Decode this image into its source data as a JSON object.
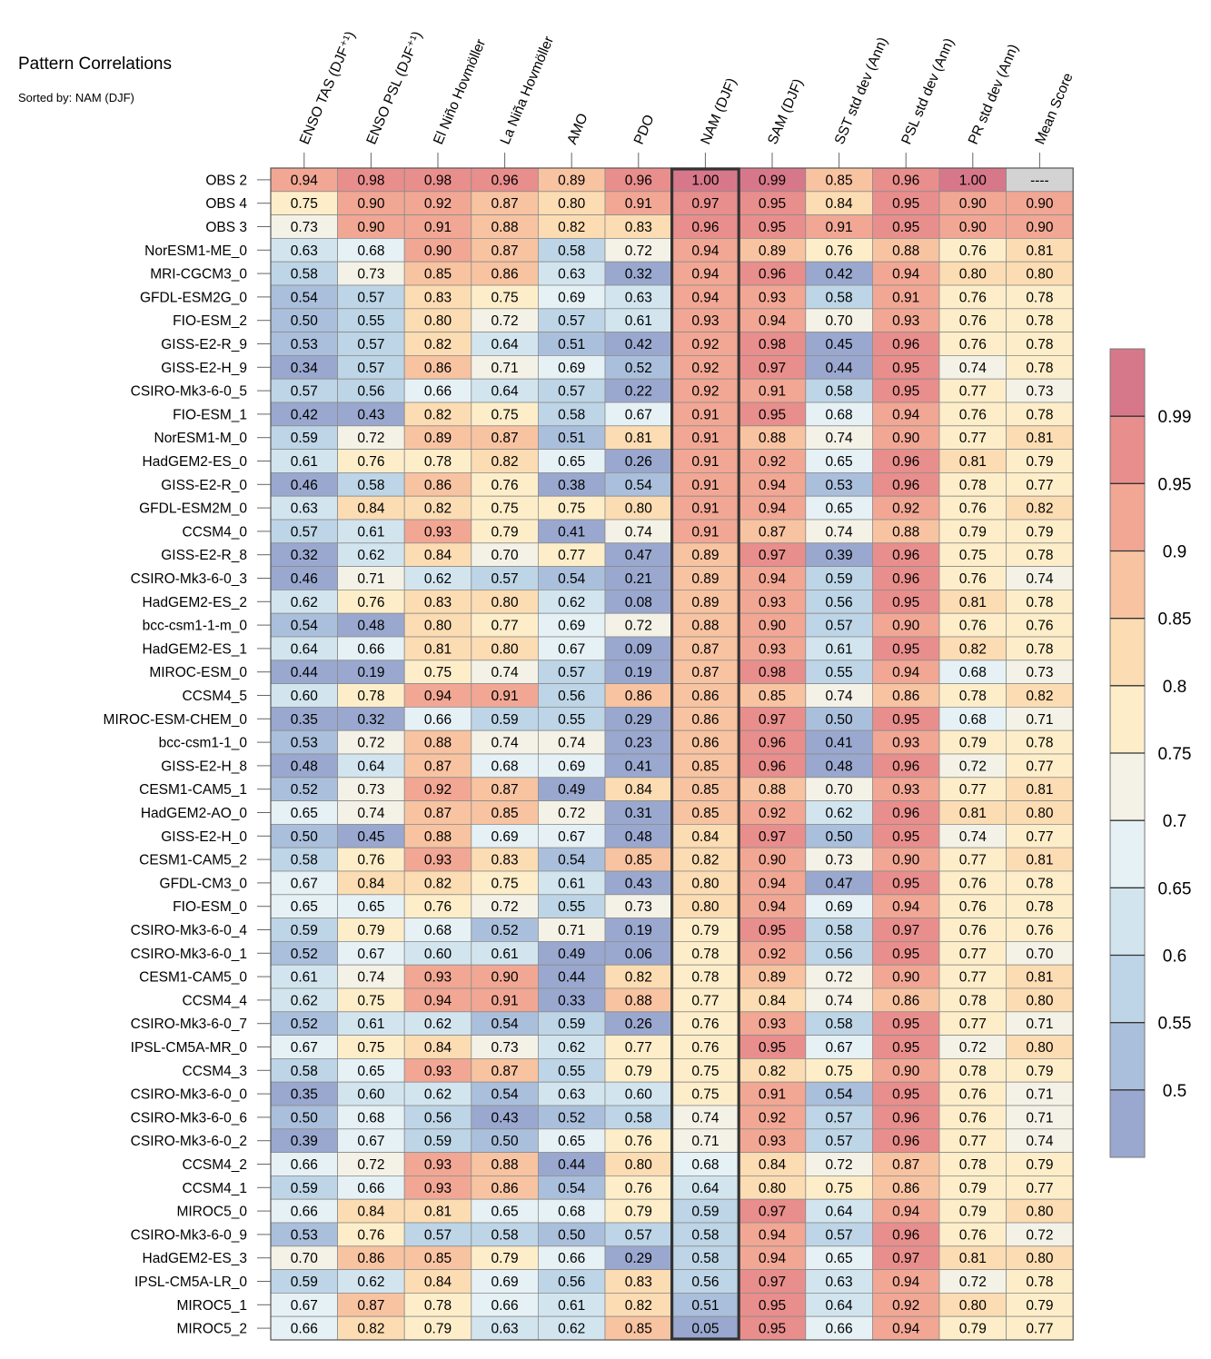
{
  "title": "Pattern Correlations",
  "subtitle": "Sorted by: NAM (DJF)",
  "chart_data": {
    "type": "heatmap",
    "title": "Pattern Correlations",
    "subtitle": "Sorted by: NAM (DJF)",
    "columns": [
      "ENSO TAS (DJF⁺¹)",
      "ENSO PSL (DJF⁺¹)",
      "El Niño Hovmöller",
      "La Niña Hovmöller",
      "AMO",
      "PDO",
      "NAM (DJF)",
      "SAM (DJF)",
      "SST std dev (Ann)",
      "PSL std dev (Ann)",
      "PR std dev (Ann)",
      "Mean Score"
    ],
    "highlight_column": "NAM (DJF)",
    "rows": [
      "OBS 2",
      "OBS 4",
      "OBS 3",
      "NorESM1-ME_0",
      "MRI-CGCM3_0",
      "GFDL-ESM2G_0",
      "FIO-ESM_2",
      "GISS-E2-R_9",
      "GISS-E2-H_9",
      "CSIRO-Mk3-6-0_5",
      "FIO-ESM_1",
      "NorESM1-M_0",
      "HadGEM2-ES_0",
      "GISS-E2-R_0",
      "GFDL-ESM2M_0",
      "CCSM4_0",
      "GISS-E2-R_8",
      "CSIRO-Mk3-6-0_3",
      "HadGEM2-ES_2",
      "bcc-csm1-1-m_0",
      "HadGEM2-ES_1",
      "MIROC-ESM_0",
      "CCSM4_5",
      "MIROC-ESM-CHEM_0",
      "bcc-csm1-1_0",
      "GISS-E2-H_8",
      "CESM1-CAM5_1",
      "HadGEM2-AO_0",
      "GISS-E2-H_0",
      "CESM1-CAM5_2",
      "GFDL-CM3_0",
      "FIO-ESM_0",
      "CSIRO-Mk3-6-0_4",
      "CSIRO-Mk3-6-0_1",
      "CESM1-CAM5_0",
      "CCSM4_4",
      "CSIRO-Mk3-6-0_7",
      "IPSL-CM5A-MR_0",
      "CCSM4_3",
      "CSIRO-Mk3-6-0_0",
      "CSIRO-Mk3-6-0_6",
      "CSIRO-Mk3-6-0_2",
      "CCSM4_2",
      "CCSM4_1",
      "MIROC5_0",
      "CSIRO-Mk3-6-0_9",
      "HadGEM2-ES_3",
      "IPSL-CM5A-LR_0",
      "MIROC5_1",
      "MIROC5_2"
    ],
    "values": [
      [
        "0.94",
        "0.98",
        "0.98",
        "0.96",
        "0.89",
        "0.96",
        "1.00",
        "0.99",
        "0.85",
        "0.96",
        "1.00",
        "----"
      ],
      [
        "0.75",
        "0.90",
        "0.92",
        "0.87",
        "0.80",
        "0.91",
        "0.97",
        "0.95",
        "0.84",
        "0.95",
        "0.90",
        "0.90"
      ],
      [
        "0.73",
        "0.90",
        "0.91",
        "0.88",
        "0.82",
        "0.83",
        "0.96",
        "0.95",
        "0.91",
        "0.95",
        "0.90",
        "0.90"
      ],
      [
        "0.63",
        "0.68",
        "0.90",
        "0.87",
        "0.58",
        "0.72",
        "0.94",
        "0.89",
        "0.76",
        "0.88",
        "0.76",
        "0.81"
      ],
      [
        "0.58",
        "0.73",
        "0.85",
        "0.86",
        "0.63",
        "0.32",
        "0.94",
        "0.96",
        "0.42",
        "0.94",
        "0.80",
        "0.80"
      ],
      [
        "0.54",
        "0.57",
        "0.83",
        "0.75",
        "0.69",
        "0.63",
        "0.94",
        "0.93",
        "0.58",
        "0.91",
        "0.76",
        "0.78"
      ],
      [
        "0.50",
        "0.55",
        "0.80",
        "0.72",
        "0.57",
        "0.61",
        "0.93",
        "0.94",
        "0.70",
        "0.93",
        "0.76",
        "0.78"
      ],
      [
        "0.53",
        "0.57",
        "0.82",
        "0.64",
        "0.51",
        "0.42",
        "0.92",
        "0.98",
        "0.45",
        "0.96",
        "0.76",
        "0.78"
      ],
      [
        "0.34",
        "0.57",
        "0.86",
        "0.71",
        "0.69",
        "0.52",
        "0.92",
        "0.97",
        "0.44",
        "0.95",
        "0.74",
        "0.78"
      ],
      [
        "0.57",
        "0.56",
        "0.66",
        "0.64",
        "0.57",
        "0.22",
        "0.92",
        "0.91",
        "0.58",
        "0.95",
        "0.77",
        "0.73"
      ],
      [
        "0.42",
        "0.43",
        "0.82",
        "0.75",
        "0.58",
        "0.67",
        "0.91",
        "0.95",
        "0.68",
        "0.94",
        "0.76",
        "0.78"
      ],
      [
        "0.59",
        "0.72",
        "0.89",
        "0.87",
        "0.51",
        "0.81",
        "0.91",
        "0.88",
        "0.74",
        "0.90",
        "0.77",
        "0.81"
      ],
      [
        "0.61",
        "0.76",
        "0.78",
        "0.82",
        "0.65",
        "0.26",
        "0.91",
        "0.92",
        "0.65",
        "0.96",
        "0.81",
        "0.79"
      ],
      [
        "0.46",
        "0.58",
        "0.86",
        "0.76",
        "0.38",
        "0.54",
        "0.91",
        "0.94",
        "0.53",
        "0.96",
        "0.78",
        "0.77"
      ],
      [
        "0.63",
        "0.84",
        "0.82",
        "0.75",
        "0.75",
        "0.80",
        "0.91",
        "0.94",
        "0.65",
        "0.92",
        "0.76",
        "0.82"
      ],
      [
        "0.57",
        "0.61",
        "0.93",
        "0.79",
        "0.41",
        "0.74",
        "0.91",
        "0.87",
        "0.74",
        "0.88",
        "0.79",
        "0.79"
      ],
      [
        "0.32",
        "0.62",
        "0.84",
        "0.70",
        "0.77",
        "0.47",
        "0.89",
        "0.97",
        "0.39",
        "0.96",
        "0.75",
        "0.78"
      ],
      [
        "0.46",
        "0.71",
        "0.62",
        "0.57",
        "0.54",
        "0.21",
        "0.89",
        "0.94",
        "0.59",
        "0.96",
        "0.76",
        "0.74"
      ],
      [
        "0.62",
        "0.76",
        "0.83",
        "0.80",
        "0.62",
        "0.08",
        "0.89",
        "0.93",
        "0.56",
        "0.95",
        "0.81",
        "0.78"
      ],
      [
        "0.54",
        "0.48",
        "0.80",
        "0.77",
        "0.69",
        "0.72",
        "0.88",
        "0.90",
        "0.57",
        "0.90",
        "0.76",
        "0.76"
      ],
      [
        "0.64",
        "0.66",
        "0.81",
        "0.80",
        "0.67",
        "0.09",
        "0.87",
        "0.93",
        "0.61",
        "0.95",
        "0.82",
        "0.78"
      ],
      [
        "0.44",
        "0.19",
        "0.75",
        "0.74",
        "0.57",
        "0.19",
        "0.87",
        "0.98",
        "0.55",
        "0.94",
        "0.68",
        "0.73"
      ],
      [
        "0.60",
        "0.78",
        "0.94",
        "0.91",
        "0.56",
        "0.86",
        "0.86",
        "0.85",
        "0.74",
        "0.86",
        "0.78",
        "0.82"
      ],
      [
        "0.35",
        "0.32",
        "0.66",
        "0.59",
        "0.55",
        "0.29",
        "0.86",
        "0.97",
        "0.50",
        "0.95",
        "0.68",
        "0.71"
      ],
      [
        "0.53",
        "0.72",
        "0.88",
        "0.74",
        "0.74",
        "0.23",
        "0.86",
        "0.96",
        "0.41",
        "0.93",
        "0.79",
        "0.78"
      ],
      [
        "0.48",
        "0.64",
        "0.87",
        "0.68",
        "0.69",
        "0.41",
        "0.85",
        "0.96",
        "0.48",
        "0.96",
        "0.72",
        "0.77"
      ],
      [
        "0.52",
        "0.73",
        "0.92",
        "0.87",
        "0.49",
        "0.84",
        "0.85",
        "0.88",
        "0.70",
        "0.93",
        "0.77",
        "0.81"
      ],
      [
        "0.65",
        "0.74",
        "0.87",
        "0.85",
        "0.72",
        "0.31",
        "0.85",
        "0.92",
        "0.62",
        "0.96",
        "0.81",
        "0.80"
      ],
      [
        "0.50",
        "0.45",
        "0.88",
        "0.69",
        "0.67",
        "0.48",
        "0.84",
        "0.97",
        "0.50",
        "0.95",
        "0.74",
        "0.77"
      ],
      [
        "0.58",
        "0.76",
        "0.93",
        "0.83",
        "0.54",
        "0.85",
        "0.82",
        "0.90",
        "0.73",
        "0.90",
        "0.77",
        "0.81"
      ],
      [
        "0.67",
        "0.84",
        "0.82",
        "0.75",
        "0.61",
        "0.43",
        "0.80",
        "0.94",
        "0.47",
        "0.95",
        "0.76",
        "0.78"
      ],
      [
        "0.65",
        "0.65",
        "0.76",
        "0.72",
        "0.55",
        "0.73",
        "0.80",
        "0.94",
        "0.69",
        "0.94",
        "0.76",
        "0.78"
      ],
      [
        "0.59",
        "0.79",
        "0.68",
        "0.52",
        "0.71",
        "0.19",
        "0.79",
        "0.95",
        "0.58",
        "0.97",
        "0.76",
        "0.76"
      ],
      [
        "0.52",
        "0.67",
        "0.60",
        "0.61",
        "0.49",
        "0.06",
        "0.78",
        "0.92",
        "0.56",
        "0.95",
        "0.77",
        "0.70"
      ],
      [
        "0.61",
        "0.74",
        "0.93",
        "0.90",
        "0.44",
        "0.82",
        "0.78",
        "0.89",
        "0.72",
        "0.90",
        "0.77",
        "0.81"
      ],
      [
        "0.62",
        "0.75",
        "0.94",
        "0.91",
        "0.33",
        "0.88",
        "0.77",
        "0.84",
        "0.74",
        "0.86",
        "0.78",
        "0.80"
      ],
      [
        "0.52",
        "0.61",
        "0.62",
        "0.54",
        "0.59",
        "0.26",
        "0.76",
        "0.93",
        "0.58",
        "0.95",
        "0.77",
        "0.71"
      ],
      [
        "0.67",
        "0.75",
        "0.84",
        "0.73",
        "0.62",
        "0.77",
        "0.76",
        "0.95",
        "0.67",
        "0.95",
        "0.72",
        "0.80"
      ],
      [
        "0.58",
        "0.65",
        "0.93",
        "0.87",
        "0.55",
        "0.79",
        "0.75",
        "0.82",
        "0.75",
        "0.90",
        "0.78",
        "0.79"
      ],
      [
        "0.35",
        "0.60",
        "0.62",
        "0.54",
        "0.63",
        "0.60",
        "0.75",
        "0.91",
        "0.54",
        "0.95",
        "0.76",
        "0.71"
      ],
      [
        "0.50",
        "0.68",
        "0.56",
        "0.43",
        "0.52",
        "0.58",
        "0.74",
        "0.92",
        "0.57",
        "0.96",
        "0.76",
        "0.71"
      ],
      [
        "0.39",
        "0.67",
        "0.59",
        "0.50",
        "0.65",
        "0.76",
        "0.71",
        "0.93",
        "0.57",
        "0.96",
        "0.77",
        "0.74"
      ],
      [
        "0.66",
        "0.72",
        "0.93",
        "0.88",
        "0.44",
        "0.80",
        "0.68",
        "0.84",
        "0.72",
        "0.87",
        "0.78",
        "0.79"
      ],
      [
        "0.59",
        "0.66",
        "0.93",
        "0.86",
        "0.54",
        "0.76",
        "0.64",
        "0.80",
        "0.75",
        "0.86",
        "0.79",
        "0.77"
      ],
      [
        "0.66",
        "0.84",
        "0.81",
        "0.65",
        "0.68",
        "0.79",
        "0.59",
        "0.97",
        "0.64",
        "0.94",
        "0.79",
        "0.80"
      ],
      [
        "0.53",
        "0.76",
        "0.57",
        "0.58",
        "0.50",
        "0.57",
        "0.58",
        "0.94",
        "0.57",
        "0.96",
        "0.76",
        "0.72"
      ],
      [
        "0.70",
        "0.86",
        "0.85",
        "0.79",
        "0.66",
        "0.29",
        "0.58",
        "0.94",
        "0.65",
        "0.97",
        "0.81",
        "0.80"
      ],
      [
        "0.59",
        "0.62",
        "0.84",
        "0.69",
        "0.56",
        "0.83",
        "0.56",
        "0.97",
        "0.63",
        "0.94",
        "0.72",
        "0.78"
      ],
      [
        "0.67",
        "0.87",
        "0.78",
        "0.66",
        "0.61",
        "0.82",
        "0.51",
        "0.95",
        "0.64",
        "0.92",
        "0.80",
        "0.79"
      ],
      [
        "0.66",
        "0.82",
        "0.79",
        "0.63",
        "0.62",
        "0.85",
        "0.05",
        "0.95",
        "0.66",
        "0.94",
        "0.79",
        "0.77"
      ]
    ],
    "colorbar": {
      "ticks": [
        "0.99",
        "0.95",
        "0.9",
        "0.85",
        "0.8",
        "0.75",
        "0.7",
        "0.65",
        "0.6",
        "0.55",
        "0.5"
      ],
      "levels": [
        0.5,
        0.55,
        0.6,
        0.65,
        0.7,
        0.75,
        0.8,
        0.85,
        0.9,
        0.95,
        0.99
      ],
      "colors": [
        "#9aa8cf",
        "#aabfdb",
        "#bdd5e6",
        "#d2e5ef",
        "#e6f1f5",
        "#f4f2e6",
        "#fdeec9",
        "#fcdcb2",
        "#f8c3a1",
        "#f1a794",
        "#e88e8c",
        "#d7788a"
      ],
      "missing_color": "#d3d3d3"
    }
  }
}
